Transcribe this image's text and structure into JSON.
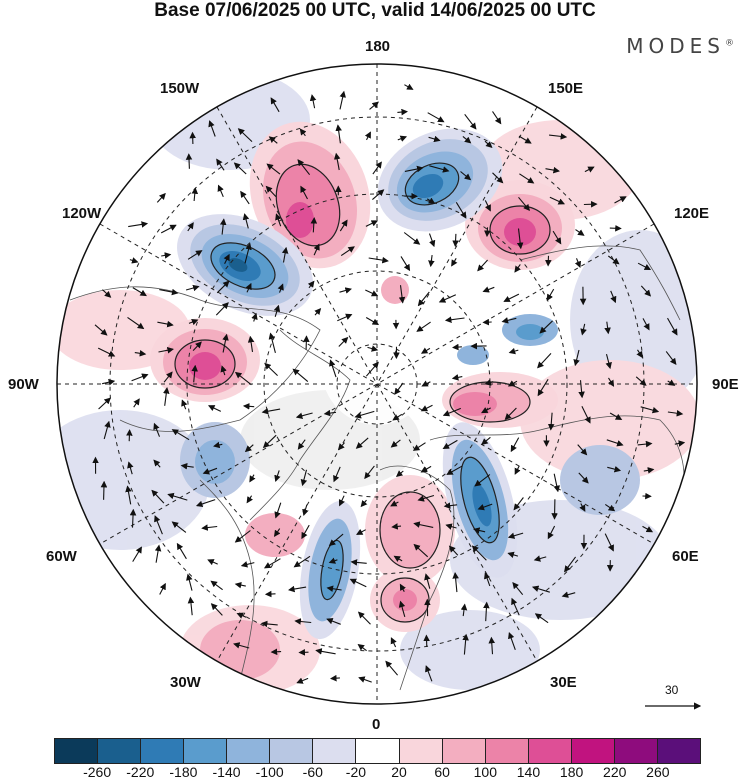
{
  "title": "Base 07/06/2025 00 UTC, valid 14/06/2025 00 UTC",
  "brand": "MODES",
  "brand_mark": "®",
  "longitude_labels": {
    "lon_180": "180",
    "lon_150w": "150W",
    "lon_150e": "150E",
    "lon_120w": "120W",
    "lon_120e": "120E",
    "lon_90w": "90W",
    "lon_90e": "90E",
    "lon_60w": "60W",
    "lon_60e": "60E",
    "lon_30w": "30W",
    "lon_30e": "30E",
    "lon_0": "0"
  },
  "reference_vector": {
    "label": "30"
  },
  "colorbar": {
    "colors": [
      "#0b3a5a",
      "#1a5f8e",
      "#2f7bb5",
      "#5a9ccd",
      "#8fb4dc",
      "#b8c7e3",
      "#dcdeef",
      "#ffffff",
      "#f9d6dc",
      "#f3aec0",
      "#ec83a8",
      "#de4f96",
      "#c1137f",
      "#8e0c7d",
      "#5b0f7a"
    ],
    "ticks": [
      "-260",
      "-220",
      "-180",
      "-140",
      "-100",
      "-60",
      "-20",
      "20",
      "60",
      "100",
      "140",
      "180",
      "220",
      "260"
    ]
  }
}
